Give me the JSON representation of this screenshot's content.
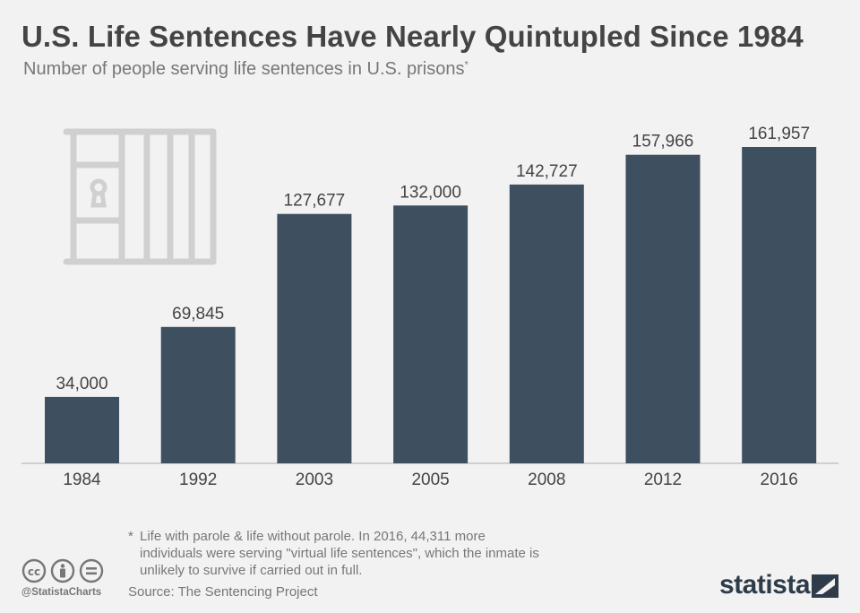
{
  "title": "U.S. Life Sentences Have Nearly Quintupled Since 1984",
  "subtitle": "Number of people serving life sentences in U.S. prisons",
  "subtitle_marker": "*",
  "footnote_marker": "*",
  "footnote": "Life with parole & life without parole. In 2016, 44,311 more individuals were serving \"virtual life sentences\", which the inmate is unlikely to survive if carried out in full.",
  "source": "Source: The Sentencing Project",
  "handle": "@StatistaCharts",
  "brand": "statista",
  "icons": [
    "jail-cell-icon",
    "creative-commons-icon",
    "attribution-icon",
    "no-derivatives-icon",
    "statista-logo-icon"
  ],
  "colors": {
    "bar": "#3e4f60",
    "background": "#f2f2f2",
    "title": "#444444"
  },
  "chart_data": {
    "type": "bar",
    "title": "U.S. Life Sentences Have Nearly Quintupled Since 1984",
    "subtitle": "Number of people serving life sentences in U.S. prisons",
    "categories": [
      "1984",
      "1992",
      "2003",
      "2005",
      "2008",
      "2012",
      "2016"
    ],
    "values": [
      34000,
      69845,
      127677,
      132000,
      142727,
      157966,
      161957
    ],
    "labels": [
      "34,000",
      "69,845",
      "127,677",
      "132,000",
      "142,727",
      "157,966",
      "161,957"
    ],
    "ylim": [
      0,
      161957
    ],
    "grid": false,
    "legend": "none"
  }
}
